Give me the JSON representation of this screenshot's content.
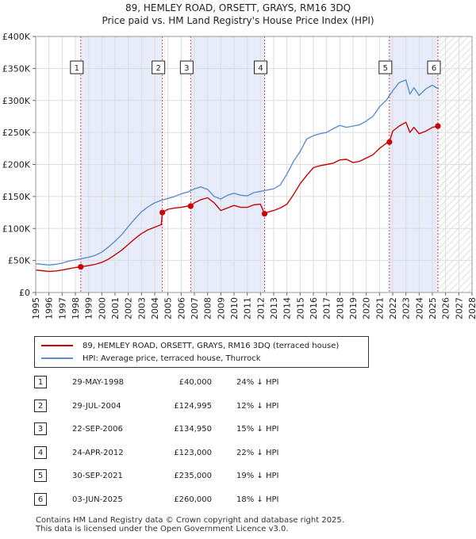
{
  "title_line1": "89, HEMLEY ROAD, ORSETT, GRAYS, RM16 3DQ",
  "title_line2": "Price paid vs. HM Land Registry's House Price Index (HPI)",
  "legend": {
    "property": "89, HEMLEY ROAD, ORSETT, GRAYS, RM16 3DQ (terraced house)",
    "hpi": "HPI: Average price, terraced house, Thurrock"
  },
  "colors": {
    "property": "#cc0000",
    "hpi": "#5b8fd1",
    "band": "#e6ecfa",
    "marker_line": "#dd4444"
  },
  "sales": [
    {
      "num": "1",
      "date": "29-MAY-1998",
      "price": "£40,000",
      "hpi": "24% ↓ HPI"
    },
    {
      "num": "2",
      "date": "29-JUL-2004",
      "price": "£124,995",
      "hpi": "12% ↓ HPI"
    },
    {
      "num": "3",
      "date": "22-SEP-2006",
      "price": "£134,950",
      "hpi": "15% ↓ HPI"
    },
    {
      "num": "4",
      "date": "24-APR-2012",
      "price": "£123,000",
      "hpi": "22% ↓ HPI"
    },
    {
      "num": "5",
      "date": "30-SEP-2021",
      "price": "£235,000",
      "hpi": "19% ↓ HPI"
    },
    {
      "num": "6",
      "date": "03-JUN-2025",
      "price": "£260,000",
      "hpi": "18% ↓ HPI"
    }
  ],
  "footer_line1": "Contains HM Land Registry data © Crown copyright and database right 2025.",
  "footer_line2": "This data is licensed under the Open Government Licence v3.0.",
  "chart_data": {
    "type": "line",
    "title": "89, HEMLEY ROAD, ORSETT, GRAYS, RM16 3DQ",
    "subtitle": "Price paid vs. HM Land Registry's House Price Index (HPI)",
    "xlim": [
      1995,
      2028
    ],
    "ylim": [
      0,
      400000
    ],
    "x_ticks": [
      "1995",
      "1996",
      "1997",
      "1998",
      "1999",
      "2000",
      "2001",
      "2002",
      "2003",
      "2004",
      "2005",
      "2006",
      "2007",
      "2008",
      "2009",
      "2010",
      "2011",
      "2012",
      "2013",
      "2014",
      "2015",
      "2016",
      "2017",
      "2018",
      "2019",
      "2020",
      "2021",
      "2022",
      "2023",
      "2024",
      "2025",
      "2026",
      "2027",
      "2028"
    ],
    "y_ticks": [
      {
        "value": 0,
        "label": "£0"
      },
      {
        "value": 50000,
        "label": "£50K"
      },
      {
        "value": 100000,
        "label": "£100K"
      },
      {
        "value": 150000,
        "label": "£150K"
      },
      {
        "value": 200000,
        "label": "£200K"
      },
      {
        "value": 250000,
        "label": "£250K"
      },
      {
        "value": 300000,
        "label": "£300K"
      },
      {
        "value": 350000,
        "label": "£350K"
      },
      {
        "value": 400000,
        "label": "£400K"
      }
    ],
    "shaded_ranges": [
      [
        1998.41,
        2004.58
      ],
      [
        2006.72,
        2012.31
      ],
      [
        2021.75,
        2025.42
      ]
    ],
    "future_hatch_from": 2025.42,
    "sale_markers": [
      {
        "label": "1",
        "x": 1998.41,
        "y": 40000
      },
      {
        "label": "2",
        "x": 2004.58,
        "y": 124995
      },
      {
        "label": "3",
        "x": 2006.72,
        "y": 134950
      },
      {
        "label": "4",
        "x": 2012.31,
        "y": 123000
      },
      {
        "label": "5",
        "x": 2021.75,
        "y": 235000
      },
      {
        "label": "6",
        "x": 2025.42,
        "y": 260000
      }
    ],
    "series": [
      {
        "name": "HPI: Average price, terraced house, Thurrock",
        "x": [
          1995,
          1995.5,
          1996,
          1996.5,
          1997,
          1997.5,
          1998,
          1998.5,
          1999,
          1999.5,
          2000,
          2000.5,
          2001,
          2001.5,
          2002,
          2002.5,
          2003,
          2003.5,
          2004,
          2004.5,
          2005,
          2005.5,
          2006,
          2006.5,
          2007,
          2007.5,
          2008,
          2008.5,
          2009,
          2009.5,
          2010,
          2010.5,
          2011,
          2011.5,
          2012,
          2012.5,
          2013,
          2013.5,
          2014,
          2014.5,
          2015,
          2015.5,
          2016,
          2016.5,
          2017,
          2017.5,
          2018,
          2018.5,
          2019,
          2019.5,
          2020,
          2020.5,
          2021,
          2021.5,
          2022,
          2022.5,
          2023,
          2023.3,
          2023.6,
          2024,
          2024.5,
          2025,
          2025.3,
          2025.5
        ],
        "values": [
          45000,
          44000,
          43000,
          44000,
          46000,
          49000,
          51000,
          53000,
          55000,
          58000,
          63000,
          71000,
          80000,
          90000,
          103000,
          115000,
          126000,
          134000,
          140000,
          144000,
          147000,
          150000,
          154000,
          157000,
          162000,
          165000,
          161000,
          150000,
          146000,
          152000,
          155000,
          152000,
          151000,
          156000,
          158000,
          160000,
          162000,
          168000,
          185000,
          205000,
          220000,
          240000,
          245000,
          248000,
          250000,
          256000,
          261000,
          258000,
          260000,
          262000,
          268000,
          275000,
          290000,
          300000,
          315000,
          328000,
          332000,
          310000,
          320000,
          308000,
          318000,
          324000,
          320000,
          318000
        ]
      },
      {
        "name": "89, HEMLEY ROAD, ORSETT, GRAYS, RM16 3DQ (terraced house)",
        "x": [
          1995,
          1995.5,
          1996,
          1996.5,
          1997,
          1997.5,
          1998,
          1998.41,
          1999,
          1999.5,
          2000,
          2000.5,
          2001,
          2001.5,
          2002,
          2002.5,
          2003,
          2003.5,
          2004,
          2004.5,
          2004.58,
          2005,
          2005.5,
          2006,
          2006.5,
          2006.72,
          2007,
          2007.5,
          2008,
          2008.5,
          2009,
          2009.5,
          2010,
          2010.5,
          2011,
          2011.5,
          2012,
          2012.31,
          2012.6,
          2013,
          2013.5,
          2014,
          2014.5,
          2015,
          2015.5,
          2016,
          2016.5,
          2017,
          2017.5,
          2018,
          2018.5,
          2019,
          2019.5,
          2020,
          2020.5,
          2021,
          2021.5,
          2021.75,
          2022,
          2022.5,
          2023,
          2023.3,
          2023.6,
          2024,
          2024.5,
          2025,
          2025.42
        ],
        "values": [
          35000,
          34000,
          33000,
          33500,
          35000,
          37000,
          39000,
          40000,
          42000,
          44000,
          47000,
          52000,
          59000,
          66000,
          75000,
          84000,
          92000,
          98000,
          102000,
          106000,
          124995,
          130000,
          132000,
          133000,
          135000,
          134950,
          140000,
          145000,
          148000,
          140000,
          128000,
          132000,
          136000,
          133000,
          133000,
          137000,
          138000,
          123000,
          126000,
          128000,
          132000,
          138000,
          153000,
          170000,
          183000,
          195000,
          198000,
          200000,
          202000,
          207000,
          208000,
          203000,
          205000,
          210000,
          215000,
          225000,
          233000,
          235000,
          252000,
          260000,
          266000,
          250000,
          258000,
          248000,
          252000,
          258000,
          260000
        ]
      }
    ]
  }
}
